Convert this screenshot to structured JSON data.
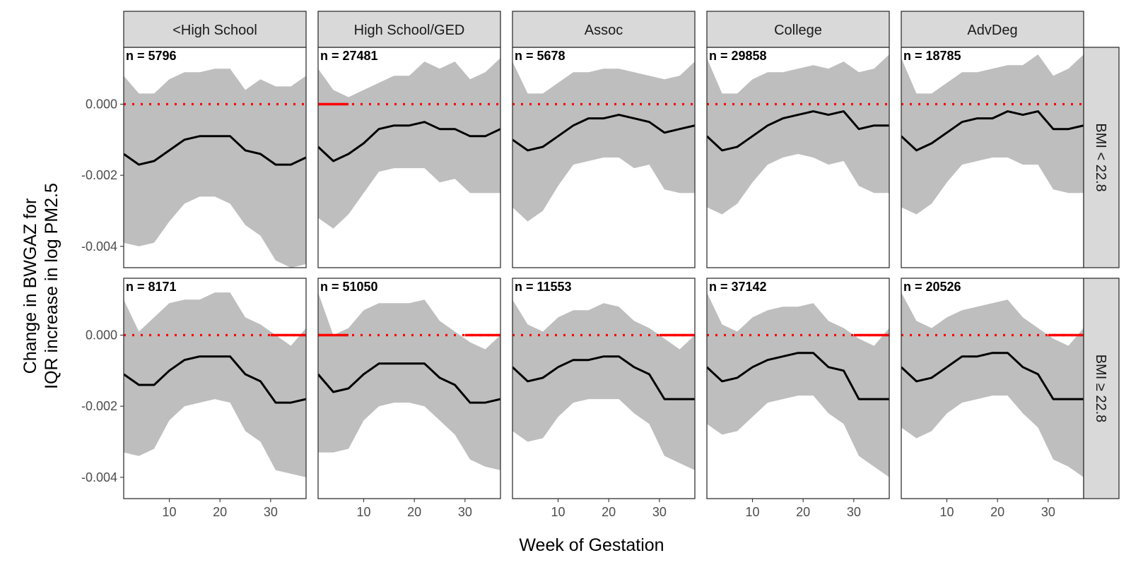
{
  "chart_data": {
    "type": "line",
    "layout": "facet-grid",
    "xlabel": "Week of Gestation",
    "ylabel_line1": "Change in BWGAZ for",
    "ylabel_line2": "IQR increase in log PM2.5",
    "xlim": [
      1,
      37
    ],
    "ylim": [
      -0.0046,
      0.0016
    ],
    "x_ticks": [
      10,
      20,
      30
    ],
    "y_ticks": [
      0.0,
      -0.002,
      -0.004
    ],
    "y_tick_labels": [
      "0.000",
      "-0.002",
      "-0.004"
    ],
    "reference_line": 0,
    "columns": [
      "<High School",
      "High School/GED",
      "Assoc",
      "College",
      "AdvDeg"
    ],
    "rows": [
      "BMI < 22.8",
      "BMI ≥ 22.8"
    ],
    "n_labels": [
      [
        "n = 5796",
        "n = 27481",
        "n = 5678",
        "n = 29858",
        "n = 18785"
      ],
      [
        "n = 8171",
        "n = 51050",
        "n = 11553",
        "n = 37142",
        "n = 20526"
      ]
    ],
    "significant_weeks": [
      [
        [],
        [
          [
            1,
            7
          ]
        ],
        [],
        [],
        []
      ],
      [
        [
          [
            30,
            37
          ]
        ],
        [
          [
            1,
            7
          ],
          [
            30,
            37
          ]
        ],
        [
          [
            30,
            37
          ]
        ],
        [
          [
            30,
            37
          ]
        ],
        [
          [
            30,
            37
          ]
        ]
      ]
    ],
    "x": [
      1,
      4,
      7,
      10,
      13,
      16,
      19,
      22,
      25,
      28,
      31,
      34,
      37
    ],
    "estimate": [
      [
        [
          -0.0014,
          -0.0017,
          -0.0016,
          -0.0013,
          -0.001,
          -0.0009,
          -0.0009,
          -0.0009,
          -0.0013,
          -0.0014,
          -0.0017,
          -0.0017,
          -0.0015
        ],
        [
          -0.0012,
          -0.0016,
          -0.0014,
          -0.0011,
          -0.0007,
          -0.0006,
          -0.0006,
          -0.0005,
          -0.0007,
          -0.0007,
          -0.0009,
          -0.0009,
          -0.0007
        ],
        [
          -0.001,
          -0.0013,
          -0.0012,
          -0.0009,
          -0.0006,
          -0.0004,
          -0.0004,
          -0.0003,
          -0.0004,
          -0.0005,
          -0.0008,
          -0.0007,
          -0.0006
        ],
        [
          -0.0009,
          -0.0013,
          -0.0012,
          -0.0009,
          -0.0006,
          -0.0004,
          -0.0003,
          -0.0002,
          -0.0003,
          -0.0002,
          -0.0007,
          -0.0006,
          -0.0006
        ],
        [
          -0.0009,
          -0.0013,
          -0.0011,
          -0.0008,
          -0.0005,
          -0.0004,
          -0.0004,
          -0.0002,
          -0.0003,
          -0.0002,
          -0.0007,
          -0.0007,
          -0.0006
        ]
      ],
      [
        [
          -0.0011,
          -0.0014,
          -0.0014,
          -0.001,
          -0.0007,
          -0.0006,
          -0.0006,
          -0.0006,
          -0.0011,
          -0.0013,
          -0.0019,
          -0.0019,
          -0.0018
        ],
        [
          -0.0011,
          -0.0016,
          -0.0015,
          -0.0011,
          -0.0008,
          -0.0008,
          -0.0008,
          -0.0008,
          -0.0012,
          -0.0014,
          -0.0019,
          -0.0019,
          -0.0018
        ],
        [
          -0.0009,
          -0.0013,
          -0.0012,
          -0.0009,
          -0.0007,
          -0.0007,
          -0.0006,
          -0.0006,
          -0.0009,
          -0.0011,
          -0.0018,
          -0.0018,
          -0.0018
        ],
        [
          -0.0009,
          -0.0013,
          -0.0012,
          -0.0009,
          -0.0007,
          -0.0006,
          -0.0005,
          -0.0005,
          -0.0009,
          -0.001,
          -0.0018,
          -0.0018,
          -0.0018
        ],
        [
          -0.0009,
          -0.0013,
          -0.0012,
          -0.0009,
          -0.0006,
          -0.0006,
          -0.0005,
          -0.0005,
          -0.0009,
          -0.0011,
          -0.0018,
          -0.0018,
          -0.0018
        ]
      ]
    ],
    "lower": [
      [
        [
          -0.0039,
          -0.004,
          -0.0039,
          -0.0033,
          -0.0028,
          -0.0026,
          -0.0026,
          -0.0028,
          -0.0034,
          -0.0037,
          -0.0044,
          -0.0046,
          -0.0045
        ],
        [
          -0.0032,
          -0.0035,
          -0.0031,
          -0.0025,
          -0.0019,
          -0.0018,
          -0.0018,
          -0.0018,
          -0.0022,
          -0.0021,
          -0.0025,
          -0.0025,
          -0.0025
        ],
        [
          -0.0029,
          -0.0033,
          -0.003,
          -0.0023,
          -0.0017,
          -0.0016,
          -0.0015,
          -0.0015,
          -0.0018,
          -0.0017,
          -0.0024,
          -0.0025,
          -0.0025
        ],
        [
          -0.0029,
          -0.0031,
          -0.0028,
          -0.0022,
          -0.0017,
          -0.0015,
          -0.0014,
          -0.0015,
          -0.0017,
          -0.0016,
          -0.0023,
          -0.0025,
          -0.0025
        ],
        [
          -0.0029,
          -0.0031,
          -0.0028,
          -0.0022,
          -0.0017,
          -0.0016,
          -0.0015,
          -0.0015,
          -0.0017,
          -0.0017,
          -0.0024,
          -0.0025,
          -0.0025
        ]
      ],
      [
        [
          -0.0033,
          -0.0034,
          -0.0032,
          -0.0024,
          -0.002,
          -0.0019,
          -0.0018,
          -0.0019,
          -0.0027,
          -0.003,
          -0.0038,
          -0.0039,
          -0.004
        ],
        [
          -0.0033,
          -0.0033,
          -0.0032,
          -0.0024,
          -0.002,
          -0.0019,
          -0.0019,
          -0.002,
          -0.0024,
          -0.0028,
          -0.0035,
          -0.0037,
          -0.0038
        ],
        [
          -0.0027,
          -0.003,
          -0.0029,
          -0.0023,
          -0.0019,
          -0.0018,
          -0.0018,
          -0.0018,
          -0.0022,
          -0.0025,
          -0.0034,
          -0.0036,
          -0.0038
        ],
        [
          -0.0025,
          -0.0028,
          -0.0027,
          -0.0023,
          -0.0019,
          -0.0018,
          -0.0017,
          -0.0017,
          -0.0022,
          -0.0025,
          -0.0034,
          -0.0037,
          -0.004
        ],
        [
          -0.0026,
          -0.0029,
          -0.0027,
          -0.0022,
          -0.0019,
          -0.0018,
          -0.0017,
          -0.0017,
          -0.0022,
          -0.0026,
          -0.0035,
          -0.0037,
          -0.004
        ]
      ]
    ],
    "upper": [
      [
        [
          0.0008,
          0.0003,
          0.0003,
          0.0007,
          0.0009,
          0.0009,
          0.001,
          0.001,
          0.0004,
          0.0007,
          0.0005,
          0.0005,
          0.0008
        ],
        [
          0.001,
          0.0004,
          0.0002,
          0.0004,
          0.0006,
          0.0008,
          0.0008,
          0.0012,
          0.001,
          0.0012,
          0.0007,
          0.0009,
          0.0013
        ],
        [
          0.0012,
          0.0003,
          0.0003,
          0.0006,
          0.0009,
          0.0009,
          0.001,
          0.001,
          0.0009,
          0.0008,
          0.0007,
          0.0008,
          0.0012
        ],
        [
          0.0013,
          0.0003,
          0.0003,
          0.0007,
          0.0009,
          0.0009,
          0.001,
          0.0011,
          0.001,
          0.0012,
          0.0009,
          0.001,
          0.0014
        ],
        [
          0.0013,
          0.0003,
          0.0003,
          0.0006,
          0.0009,
          0.0009,
          0.001,
          0.0011,
          0.0011,
          0.0014,
          0.0008,
          0.001,
          0.0014
        ]
      ],
      [
        [
          0.001,
          0.0001,
          0.0005,
          0.0009,
          0.001,
          0.001,
          0.0012,
          0.0012,
          0.0005,
          0.0003,
          0.0,
          -0.0003,
          0.0002
        ],
        [
          0.0012,
          0.0,
          0.0002,
          0.0007,
          0.0009,
          0.0009,
          0.0009,
          0.001,
          0.0004,
          0.0001,
          -0.0002,
          -0.0004,
          0.0
        ],
        [
          0.001,
          0.0003,
          0.0001,
          0.0005,
          0.0007,
          0.0007,
          0.0009,
          0.0008,
          0.0004,
          0.0002,
          -0.0001,
          -0.0004,
          0.0
        ],
        [
          0.0012,
          0.0003,
          0.0001,
          0.0005,
          0.0007,
          0.0008,
          0.0008,
          0.0009,
          0.0004,
          0.0002,
          -0.0001,
          -0.0003,
          0.0002
        ],
        [
          0.0012,
          0.0004,
          0.0002,
          0.0005,
          0.0007,
          0.0008,
          0.0009,
          0.001,
          0.0005,
          0.0002,
          -0.0001,
          -0.0003,
          0.0002
        ]
      ]
    ]
  },
  "colors": {
    "band": "#bebebe",
    "estimate": "#000000",
    "reference": "#ff0000",
    "strip": "#d9d9d9"
  }
}
